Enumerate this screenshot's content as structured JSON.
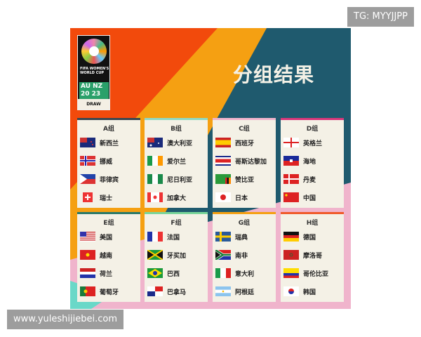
{
  "watermark_top": "TG: MYYJJPP",
  "watermark_bottom": "www.yuleshijiebei.com",
  "logo": {
    "text": "FIFA WOMEN'S WORLD CUP",
    "hosts": "AU NZ",
    "year": "20 23",
    "draw": "DRAW"
  },
  "title": "分组结果",
  "colors": {
    "orange_red": "#f24a0c",
    "orange": "#f5a012",
    "teal": "#1f5a6e",
    "pink": "#f0b4cc",
    "card": "#f4f1e6"
  },
  "groups": [
    {
      "name": "A组",
      "accent": "#3a4750",
      "teams": [
        {
          "name": "新西兰",
          "flag": "nz"
        },
        {
          "name": "挪威",
          "flag": "no"
        },
        {
          "name": "菲律宾",
          "flag": "ph"
        },
        {
          "name": "瑞士",
          "flag": "ch"
        }
      ]
    },
    {
      "name": "B组",
      "accent": "#8fd8c4",
      "teams": [
        {
          "name": "澳大利亚",
          "flag": "au"
        },
        {
          "name": "爱尔兰",
          "flag": "ie"
        },
        {
          "name": "尼日利亚",
          "flag": "ng"
        },
        {
          "name": "加拿大",
          "flag": "ca"
        }
      ]
    },
    {
      "name": "C组",
      "accent": "#f0b4cc",
      "teams": [
        {
          "name": "西班牙",
          "flag": "es"
        },
        {
          "name": "哥斯达黎加",
          "flag": "cr"
        },
        {
          "name": "赞比亚",
          "flag": "zm"
        },
        {
          "name": "日本",
          "flag": "jp"
        }
      ]
    },
    {
      "name": "D组",
      "accent": "#d8367a",
      "teams": [
        {
          "name": "英格兰",
          "flag": "en"
        },
        {
          "name": "海地",
          "flag": "ht"
        },
        {
          "name": "丹麦",
          "flag": "dk"
        },
        {
          "name": "中国",
          "flag": "cn"
        }
      ]
    },
    {
      "name": "E组",
      "accent": "#2a7a6a",
      "teams": [
        {
          "name": "美国",
          "flag": "us"
        },
        {
          "name": "越南",
          "flag": "vn"
        },
        {
          "name": "荷兰",
          "flag": "nl"
        },
        {
          "name": "葡萄牙",
          "flag": "pt"
        }
      ]
    },
    {
      "name": "F组",
      "accent": "#7ad69a",
      "teams": [
        {
          "name": "法国",
          "flag": "fr"
        },
        {
          "name": "牙买加",
          "flag": "jm"
        },
        {
          "name": "巴西",
          "flag": "br"
        },
        {
          "name": "巴拿马",
          "flag": "pa"
        }
      ]
    },
    {
      "name": "G组",
      "accent": "#f5a012",
      "teams": [
        {
          "name": "瑞典",
          "flag": "se"
        },
        {
          "name": "南非",
          "flag": "za"
        },
        {
          "name": "意大利",
          "flag": "it"
        },
        {
          "name": "阿根廷",
          "flag": "ar"
        }
      ]
    },
    {
      "name": "H组",
      "accent": "#f05a2a",
      "teams": [
        {
          "name": "德国",
          "flag": "de"
        },
        {
          "name": "摩洛哥",
          "flag": "ma"
        },
        {
          "name": "哥伦比亚",
          "flag": "co"
        },
        {
          "name": "韩国",
          "flag": "kr"
        }
      ]
    }
  ]
}
